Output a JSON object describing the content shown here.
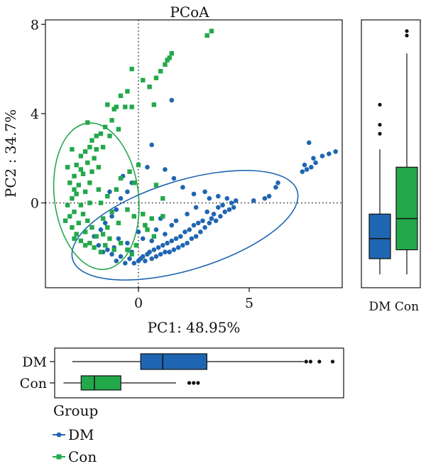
{
  "chart_data": {
    "type": "scatter",
    "title": "PCoA",
    "xlabel": "PC1: 48.95%",
    "ylabel": "PC2 : 34.7%",
    "xlim": [
      -4.2,
      9.2
    ],
    "ylim": [
      -3.8,
      8.2
    ],
    "x_ticks": [
      "0",
      "5"
    ],
    "x_tick_values": [
      0,
      5
    ],
    "y_ticks": [
      "0",
      "4",
      "8"
    ],
    "y_tick_values": [
      0,
      4,
      8
    ],
    "reference_lines": {
      "x": 0,
      "y": 0,
      "style": "dotted"
    },
    "grid": false,
    "legend": {
      "title": "Group",
      "placement": "bottom-left",
      "entries": [
        "DM",
        "Con"
      ]
    },
    "colors": {
      "DM": "#1f66b2",
      "Con": "#23a84a"
    },
    "ellipses": [
      {
        "series": "DM",
        "cx": 2.1,
        "cy": -1.0,
        "rx": 5.3,
        "ry": 2.0,
        "angle_deg": 17
      },
      {
        "series": "Con",
        "cx": -1.9,
        "cy": 0.3,
        "rx": 1.9,
        "ry": 3.3,
        "angle_deg": 7
      }
    ],
    "series": [
      {
        "name": "DM",
        "points": [
          [
            8.9,
            2.3
          ],
          [
            8.6,
            2.2
          ],
          [
            8.3,
            2.1
          ],
          [
            8.0,
            1.8
          ],
          [
            7.9,
            2.0
          ],
          [
            7.8,
            1.6
          ],
          [
            7.7,
            2.7
          ],
          [
            7.6,
            1.5
          ],
          [
            7.5,
            1.7
          ],
          [
            7.4,
            1.4
          ],
          [
            6.3,
            0.9
          ],
          [
            6.2,
            0.7
          ],
          [
            5.9,
            0.3
          ],
          [
            5.7,
            0.2
          ],
          [
            5.2,
            0.1
          ],
          [
            4.4,
            0.1
          ],
          [
            4.3,
            -0.2
          ],
          [
            4.2,
            0.0
          ],
          [
            4.1,
            -0.3
          ],
          [
            4.0,
            0.2
          ],
          [
            3.9,
            -0.4
          ],
          [
            3.8,
            -0.1
          ],
          [
            3.7,
            -0.6
          ],
          [
            3.6,
            -0.2
          ],
          [
            3.5,
            -0.8
          ],
          [
            3.4,
            -0.5
          ],
          [
            3.3,
            -0.7
          ],
          [
            3.2,
            -0.9
          ],
          [
            3.1,
            -0.4
          ],
          [
            3.0,
            -1.1
          ],
          [
            2.9,
            -0.8
          ],
          [
            2.8,
            -1.3
          ],
          [
            2.7,
            -0.9
          ],
          [
            2.6,
            -1.5
          ],
          [
            2.5,
            -1.0
          ],
          [
            2.4,
            -1.6
          ],
          [
            2.3,
            -1.2
          ],
          [
            2.2,
            -1.8
          ],
          [
            2.1,
            -1.3
          ],
          [
            2.0,
            -1.9
          ],
          [
            1.9,
            -1.5
          ],
          [
            1.8,
            -2.0
          ],
          [
            1.7,
            -1.6
          ],
          [
            1.6,
            -2.1
          ],
          [
            1.5,
            -1.7
          ],
          [
            1.4,
            -2.2
          ],
          [
            1.3,
            -1.8
          ],
          [
            1.2,
            -2.2
          ],
          [
            1.1,
            -1.9
          ],
          [
            1.0,
            -2.3
          ],
          [
            0.9,
            -2.0
          ],
          [
            0.8,
            -2.4
          ],
          [
            0.7,
            -2.1
          ],
          [
            0.6,
            -2.5
          ],
          [
            0.5,
            -2.2
          ],
          [
            0.4,
            -2.3
          ],
          [
            0.3,
            -2.6
          ],
          [
            0.2,
            -2.4
          ],
          [
            0.1,
            -2.5
          ],
          [
            0.0,
            -2.6
          ],
          [
            -0.2,
            -2.7
          ],
          [
            -0.4,
            -2.5
          ],
          [
            -0.6,
            -2.7
          ],
          [
            -0.8,
            -2.4
          ],
          [
            -1.0,
            -2.6
          ],
          [
            -1.2,
            -2.3
          ],
          [
            -1.4,
            -2.1
          ],
          [
            -1.6,
            -2.2
          ],
          [
            -1.8,
            -1.9
          ],
          [
            -2.0,
            -1.5
          ],
          [
            -1.7,
            -1.2
          ],
          [
            -1.5,
            -0.9
          ],
          [
            -1.2,
            -0.6
          ],
          [
            -1.0,
            -0.3
          ],
          [
            -0.8,
            0.2
          ],
          [
            -0.5,
            0.5
          ],
          [
            -0.3,
            0.9
          ],
          [
            -1.3,
            0.5
          ],
          [
            -0.7,
            1.2
          ],
          [
            0.4,
            1.6
          ],
          [
            1.2,
            1.5
          ],
          [
            1.6,
            1.1
          ],
          [
            0.6,
            2.6
          ],
          [
            1.5,
            4.6
          ],
          [
            2.5,
            0.4
          ],
          [
            2.0,
            0.7
          ],
          [
            3.0,
            0.5
          ],
          [
            0.3,
            -1.0
          ],
          [
            0.8,
            -1.2
          ],
          [
            1.0,
            -0.7
          ],
          [
            1.5,
            -1.0
          ],
          [
            0.2,
            -1.6
          ],
          [
            -0.1,
            -1.9
          ],
          [
            0.6,
            -1.7
          ],
          [
            1.2,
            -1.4
          ],
          [
            1.7,
            -0.8
          ],
          [
            2.2,
            -0.5
          ],
          [
            2.6,
            -0.2
          ],
          [
            3.2,
            0.2
          ],
          [
            3.6,
            0.3
          ],
          [
            0.0,
            -1.3
          ],
          [
            -0.5,
            -1.8
          ],
          [
            -0.9,
            -1.6
          ],
          [
            -1.1,
            -2.0
          ],
          [
            -0.3,
            -2.2
          ]
        ]
      },
      {
        "name": "Con",
        "points": [
          [
            3.3,
            7.7
          ],
          [
            3.1,
            7.5
          ],
          [
            1.5,
            6.7
          ],
          [
            1.4,
            6.5
          ],
          [
            1.3,
            6.4
          ],
          [
            1.2,
            6.2
          ],
          [
            1.0,
            5.9
          ],
          [
            0.8,
            5.6
          ],
          [
            0.5,
            5.2
          ],
          [
            0.2,
            5.5
          ],
          [
            -0.3,
            6.0
          ],
          [
            0.7,
            4.4
          ],
          [
            -0.5,
            5.0
          ],
          [
            -0.8,
            4.8
          ],
          [
            -1.1,
            4.2
          ],
          [
            -0.3,
            4.3
          ],
          [
            -0.6,
            4.3
          ],
          [
            -1.0,
            4.3
          ],
          [
            -1.4,
            4.4
          ],
          [
            -1.2,
            3.7
          ],
          [
            -1.5,
            3.4
          ],
          [
            -0.9,
            3.3
          ],
          [
            -1.3,
            3.0
          ],
          [
            -1.7,
            3.1
          ],
          [
            -1.9,
            3.0
          ],
          [
            -2.1,
            2.8
          ],
          [
            -1.6,
            2.5
          ],
          [
            -2.2,
            2.5
          ],
          [
            -2.4,
            2.3
          ],
          [
            -2.0,
            2.0
          ],
          [
            -2.3,
            1.8
          ],
          [
            -2.6,
            2.1
          ],
          [
            -2.8,
            1.7
          ],
          [
            -1.8,
            1.6
          ],
          [
            -2.1,
            1.4
          ],
          [
            -2.5,
            1.3
          ],
          [
            -2.9,
            1.2
          ],
          [
            -3.1,
            0.9
          ],
          [
            -2.7,
            0.8
          ],
          [
            -2.2,
            0.9
          ],
          [
            -2.4,
            0.5
          ],
          [
            -2.8,
            0.4
          ],
          [
            -3.0,
            0.2
          ],
          [
            -3.2,
            -0.1
          ],
          [
            -2.6,
            -0.1
          ],
          [
            -2.2,
            0.0
          ],
          [
            -2.9,
            -0.4
          ],
          [
            -3.1,
            -0.6
          ],
          [
            -2.5,
            -0.5
          ],
          [
            -2.7,
            -0.9
          ],
          [
            -2.3,
            -0.8
          ],
          [
            -3.0,
            -1.1
          ],
          [
            -2.8,
            -1.4
          ],
          [
            -2.4,
            -1.3
          ],
          [
            -2.1,
            -1.1
          ],
          [
            -2.6,
            -1.7
          ],
          [
            -2.2,
            -1.8
          ],
          [
            -1.9,
            -1.5
          ],
          [
            -1.6,
            -1.4
          ],
          [
            -2.0,
            -2.0
          ],
          [
            -1.5,
            -1.9
          ],
          [
            -1.3,
            -1.6
          ],
          [
            -1.1,
            -2.1
          ],
          [
            -0.8,
            -1.8
          ],
          [
            -0.5,
            -2.1
          ],
          [
            -0.3,
            -2.3
          ],
          [
            -0.1,
            -1.9
          ],
          [
            0.2,
            -0.5
          ],
          [
            0.6,
            -0.7
          ],
          [
            1.1,
            0.2
          ],
          [
            1.1,
            -0.6
          ],
          [
            0.8,
            0.8
          ],
          [
            -0.2,
            0.9
          ],
          [
            -0.4,
            1.4
          ],
          [
            -0.8,
            1.1
          ],
          [
            -1.0,
            0.6
          ],
          [
            -1.4,
            0.3
          ],
          [
            -1.7,
            0.0
          ],
          [
            -1.8,
            0.6
          ],
          [
            -1.2,
            -0.4
          ],
          [
            -0.9,
            -0.9
          ],
          [
            -0.5,
            -0.3
          ],
          [
            -0.2,
            -0.6
          ],
          [
            0.4,
            -1.2
          ],
          [
            0.7,
            -1.5
          ],
          [
            -1.6,
            -0.7
          ],
          [
            -1.4,
            -1.1
          ],
          [
            -3.2,
            1.6
          ],
          [
            -3.0,
            2.4
          ],
          [
            -2.3,
            3.6
          ],
          [
            -2.9,
            0.6
          ],
          [
            -2.6,
            1.5
          ],
          [
            -1.9,
            2.4
          ],
          [
            -2.4,
            -1.9
          ],
          [
            -3.3,
            -0.8
          ],
          [
            -2.9,
            -1.6
          ],
          [
            -1.7,
            -2.2
          ],
          [
            0.0,
            1.7
          ],
          [
            0.3,
            -1.0
          ]
        ]
      }
    ],
    "boxplots": {
      "right": {
        "variable": "PC2",
        "categories": [
          "DM",
          "Con"
        ],
        "boxes": [
          {
            "name": "DM",
            "whisker_low": -3.2,
            "q1": -2.5,
            "median": -1.6,
            "q3": -0.5,
            "whisker_high": 2.4,
            "outliers": [
              3.1,
              3.5,
              4.4
            ]
          },
          {
            "name": "Con",
            "whisker_low": -3.2,
            "q1": -2.1,
            "median": -0.7,
            "q3": 1.6,
            "whisker_high": 6.7,
            "outliers": [
              7.5,
              7.7
            ]
          }
        ]
      },
      "bottom": {
        "variable": "PC1",
        "categories": [
          "DM",
          "Con"
        ],
        "boxes": [
          {
            "name": "DM",
            "whisker_low": -2.9,
            "q1": 0.2,
            "median": 1.2,
            "q3": 3.2,
            "whisker_high": 7.6,
            "outliers": [
              7.7,
              7.9,
              8.3,
              8.9
            ]
          },
          {
            "name": "Con",
            "whisker_low": -3.3,
            "q1": -2.5,
            "median": -1.9,
            "q3": -0.7,
            "whisker_high": 1.8,
            "outliers": [
              2.4,
              2.6,
              2.8
            ]
          }
        ]
      }
    }
  }
}
